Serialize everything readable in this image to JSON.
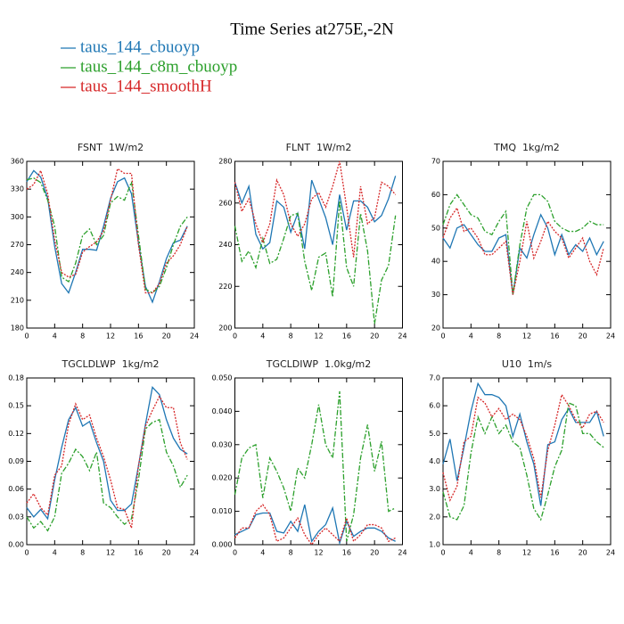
{
  "title": "Time Series at275E,-2N",
  "chart_data": [
    {
      "type": "line",
      "title": "FSNT  1W/m2",
      "x": [
        0,
        1,
        2,
        3,
        4,
        5,
        6,
        7,
        8,
        9,
        10,
        11,
        12,
        13,
        14,
        15,
        16,
        17,
        18,
        19,
        20,
        21,
        22,
        23
      ],
      "xlim": [
        0,
        24
      ],
      "xticks": [
        0,
        4,
        8,
        12,
        16,
        20,
        24
      ],
      "ylim": [
        180,
        360
      ],
      "yticks": [
        180,
        210,
        240,
        270,
        300,
        330,
        360
      ],
      "series": [
        {
          "name": "taus_144_cbuoyp",
          "color": "#1f77b4",
          "style": "solid",
          "values": [
            338,
            350,
            343,
            320,
            268,
            228,
            218,
            240,
            265,
            265,
            264,
            290,
            320,
            338,
            342,
            325,
            272,
            225,
            208,
            230,
            255,
            272,
            275,
            290
          ]
        },
        {
          "name": "taus_144_c8m_cbuoyp",
          "color": "#2ca02c",
          "style": "dashed",
          "values": [
            340,
            342,
            337,
            318,
            290,
            235,
            230,
            250,
            280,
            287,
            270,
            280,
            315,
            322,
            318,
            338,
            280,
            222,
            218,
            225,
            245,
            270,
            290,
            300
          ]
        },
        {
          "name": "taus_144_smoothH",
          "color": "#d62728",
          "style": "dotted",
          "values": [
            330,
            335,
            350,
            325,
            275,
            240,
            235,
            238,
            262,
            268,
            273,
            285,
            318,
            352,
            347,
            347,
            270,
            218,
            218,
            228,
            250,
            258,
            270,
            290
          ]
        }
      ]
    },
    {
      "type": "line",
      "title": "FLNT  1W/m2",
      "x": [
        0,
        1,
        2,
        3,
        4,
        5,
        6,
        7,
        8,
        9,
        10,
        11,
        12,
        13,
        14,
        15,
        16,
        17,
        18,
        19,
        20,
        21,
        22,
        23
      ],
      "xlim": [
        0,
        24
      ],
      "xticks": [
        0,
        4,
        8,
        12,
        16,
        20,
        24
      ],
      "ylim": [
        200,
        280
      ],
      "yticks": [
        200,
        220,
        240,
        260,
        280
      ],
      "series": [
        {
          "name": "taus_144_cbuoyp",
          "color": "#1f77b4",
          "style": "solid",
          "values": [
            270,
            260,
            268,
            245,
            238,
            241,
            261,
            258,
            246,
            255,
            238,
            271,
            262,
            253,
            240,
            264,
            247,
            261,
            261,
            258,
            251,
            254,
            262,
            273
          ]
        },
        {
          "name": "taus_144_c8m_cbuoyp",
          "color": "#2ca02c",
          "style": "dashed",
          "values": [
            249,
            232,
            237,
            229,
            243,
            231,
            233,
            243,
            254,
            255,
            232,
            218,
            234,
            236,
            215,
            261,
            229,
            220,
            255,
            237,
            202,
            223,
            230,
            254
          ]
        },
        {
          "name": "taus_144_smoothH",
          "color": "#d62728",
          "style": "dotted",
          "values": [
            270,
            256,
            262,
            250,
            241,
            250,
            271,
            264,
            250,
            244,
            250,
            262,
            265,
            258,
            268,
            280,
            258,
            234,
            268,
            250,
            253,
            270,
            268,
            264
          ]
        }
      ]
    },
    {
      "type": "line",
      "title": "TMQ  1kg/m2",
      "x": [
        0,
        1,
        2,
        3,
        4,
        5,
        6,
        7,
        8,
        9,
        10,
        11,
        12,
        13,
        14,
        15,
        16,
        17,
        18,
        19,
        20,
        21,
        22,
        23
      ],
      "xlim": [
        0,
        24
      ],
      "xticks": [
        0,
        4,
        8,
        12,
        16,
        20,
        24
      ],
      "ylim": [
        20,
        70
      ],
      "yticks": [
        20,
        30,
        40,
        50,
        60,
        70
      ],
      "series": [
        {
          "name": "taus_144_cbuoyp",
          "color": "#1f77b4",
          "style": "solid",
          "values": [
            47,
            44,
            50,
            51,
            48,
            45,
            43,
            43,
            47,
            48,
            30,
            44,
            41,
            48,
            54,
            50,
            42,
            48,
            42,
            45,
            43,
            47,
            42,
            46
          ]
        },
        {
          "name": "taus_144_c8m_cbuoyp",
          "color": "#2ca02c",
          "style": "dashed",
          "values": [
            51,
            57,
            60,
            57,
            54,
            53,
            49,
            48,
            52,
            55,
            30,
            45,
            56,
            60,
            60,
            58,
            52,
            50,
            49,
            49,
            50,
            52,
            51,
            51
          ]
        },
        {
          "name": "taus_144_smoothH",
          "color": "#d62728",
          "style": "dotted",
          "values": [
            47,
            53,
            56,
            49,
            50,
            47,
            42,
            42,
            44,
            46,
            30,
            40,
            52,
            41,
            46,
            52,
            49,
            47,
            41,
            44,
            47,
            40,
            36,
            44
          ]
        }
      ]
    },
    {
      "type": "line",
      "title": "TGCLDLWP  1kg/m2",
      "x": [
        0,
        1,
        2,
        3,
        4,
        5,
        6,
        7,
        8,
        9,
        10,
        11,
        12,
        13,
        14,
        15,
        16,
        17,
        18,
        19,
        20,
        21,
        22,
        23
      ],
      "xlim": [
        0,
        24
      ],
      "xticks": [
        0,
        4,
        8,
        12,
        16,
        20,
        24
      ],
      "ylim": [
        0,
        0.18
      ],
      "yticks": [
        {
          "value": 0,
          "label": "0.00"
        },
        {
          "value": 0.03,
          "label": "0.03"
        },
        {
          "value": 0.06,
          "label": "0.06"
        },
        {
          "value": 0.09,
          "label": "0.09"
        },
        {
          "value": 0.12,
          "label": "0.12"
        },
        {
          "value": 0.15,
          "label": "0.15"
        },
        {
          "value": 0.18,
          "label": "0.18"
        }
      ],
      "series": [
        {
          "name": "taus_144_cbuoyp",
          "color": "#1f77b4",
          "style": "solid",
          "values": [
            0.04,
            0.03,
            0.038,
            0.028,
            0.07,
            0.105,
            0.135,
            0.148,
            0.128,
            0.133,
            0.11,
            0.09,
            0.048,
            0.037,
            0.037,
            0.044,
            0.085,
            0.13,
            0.17,
            0.162,
            0.135,
            0.115,
            0.103,
            0.098
          ]
        },
        {
          "name": "taus_144_c8m_cbuoyp",
          "color": "#2ca02c",
          "style": "dashed",
          "values": [
            0.03,
            0.018,
            0.025,
            0.015,
            0.03,
            0.077,
            0.088,
            0.103,
            0.095,
            0.08,
            0.1,
            0.045,
            0.04,
            0.03,
            0.022,
            0.028,
            0.07,
            0.125,
            0.132,
            0.135,
            0.1,
            0.085,
            0.062,
            0.075
          ]
        },
        {
          "name": "taus_144_smoothH",
          "color": "#d62728",
          "style": "dotted",
          "values": [
            0.045,
            0.055,
            0.04,
            0.032,
            0.075,
            0.085,
            0.13,
            0.152,
            0.135,
            0.14,
            0.115,
            0.095,
            0.07,
            0.04,
            0.038,
            0.018,
            0.085,
            0.128,
            0.145,
            0.16,
            0.148,
            0.148,
            0.11,
            0.092
          ]
        }
      ]
    },
    {
      "type": "line",
      "title": "TGCLDIWP  1.0kg/m2",
      "x": [
        0,
        1,
        2,
        3,
        4,
        5,
        6,
        7,
        8,
        9,
        10,
        11,
        12,
        13,
        14,
        15,
        16,
        17,
        18,
        19,
        20,
        21,
        22,
        23
      ],
      "xlim": [
        0,
        24
      ],
      "xticks": [
        0,
        4,
        8,
        12,
        16,
        20,
        24
      ],
      "ylim": [
        0,
        0.05
      ],
      "yticks": [
        {
          "value": 0,
          "label": "0.000"
        },
        {
          "value": 0.01,
          "label": "0.010"
        },
        {
          "value": 0.02,
          "label": "0.020"
        },
        {
          "value": 0.03,
          "label": "0.030"
        },
        {
          "value": 0.04,
          "label": "0.040"
        },
        {
          "value": 0.05,
          "label": "0.050"
        }
      ],
      "series": [
        {
          "name": "taus_144_cbuoyp",
          "color": "#1f77b4",
          "style": "solid",
          "values": [
            0.003,
            0.004,
            0.005,
            0.009,
            0.0095,
            0.0095,
            0.004,
            0.0035,
            0.007,
            0.004,
            0.012,
            0.001,
            0.004,
            0.006,
            0.011,
            0.0005,
            0.007,
            0.0025,
            0.004,
            0.005,
            0.005,
            0.004,
            0.002,
            0.001
          ]
        },
        {
          "name": "taus_144_c8m_cbuoyp",
          "color": "#2ca02c",
          "style": "dashed",
          "values": [
            0.015,
            0.026,
            0.029,
            0.03,
            0.014,
            0.026,
            0.022,
            0.017,
            0.01,
            0.023,
            0.02,
            0.03,
            0.042,
            0.03,
            0.026,
            0.046,
            0.001,
            0.009,
            0.026,
            0.036,
            0.022,
            0.031,
            0.01,
            0.011
          ]
        },
        {
          "name": "taus_144_smoothH",
          "color": "#d62728",
          "style": "dotted",
          "values": [
            0.002,
            0.005,
            0.005,
            0.01,
            0.012,
            0.009,
            0.001,
            0.002,
            0.005,
            0.008,
            0.003,
            0,
            0.003,
            0.005,
            0.003,
            0.001,
            0.008,
            0.001,
            0.003,
            0.006,
            0.006,
            0.005,
            0.001,
            0.002
          ]
        }
      ]
    },
    {
      "type": "line",
      "title": "U10  1m/s",
      "x": [
        0,
        1,
        2,
        3,
        4,
        5,
        6,
        7,
        8,
        9,
        10,
        11,
        12,
        13,
        14,
        15,
        16,
        17,
        18,
        19,
        20,
        21,
        22,
        23
      ],
      "xlim": [
        0,
        24
      ],
      "xticks": [
        0,
        4,
        8,
        12,
        16,
        20,
        24
      ],
      "ylim": [
        1,
        7
      ],
      "yticks": [
        {
          "value": 1,
          "label": "1.0"
        },
        {
          "value": 2,
          "label": "2.0"
        },
        {
          "value": 3,
          "label": "3.0"
        },
        {
          "value": 4,
          "label": "4.0"
        },
        {
          "value": 5,
          "label": "5.0"
        },
        {
          "value": 6,
          "label": "6.0"
        },
        {
          "value": 7,
          "label": "7.0"
        }
      ],
      "series": [
        {
          "name": "taus_144_cbuoyp",
          "color": "#1f77b4",
          "style": "solid",
          "values": [
            3.9,
            4.8,
            3.3,
            4.5,
            5.8,
            6.8,
            6.4,
            6.4,
            6.3,
            6.0,
            4.9,
            5.7,
            4.7,
            3.9,
            2.4,
            4.6,
            4.7,
            5.5,
            5.9,
            5.4,
            5.4,
            5.4,
            5.8,
            4.9
          ]
        },
        {
          "name": "taus_144_c8m_cbuoyp",
          "color": "#2ca02c",
          "style": "dashed",
          "values": [
            2.9,
            2.0,
            1.9,
            2.4,
            4.3,
            5.6,
            5.0,
            5.6,
            5.0,
            5.3,
            4.7,
            4.5,
            3.5,
            2.3,
            1.9,
            2.8,
            3.8,
            4.4,
            6.1,
            6.0,
            5.0,
            5.0,
            4.7,
            4.5
          ]
        },
        {
          "name": "taus_144_smoothH",
          "color": "#d62728",
          "style": "dotted",
          "values": [
            3.6,
            2.6,
            3.1,
            4.7,
            4.9,
            6.3,
            6.1,
            5.6,
            5.9,
            5.5,
            5.7,
            5.5,
            4.9,
            4.1,
            2.7,
            4.4,
            5.3,
            6.4,
            6.0,
            5.5,
            5.2,
            5.7,
            5.8,
            5.4
          ]
        }
      ]
    }
  ]
}
